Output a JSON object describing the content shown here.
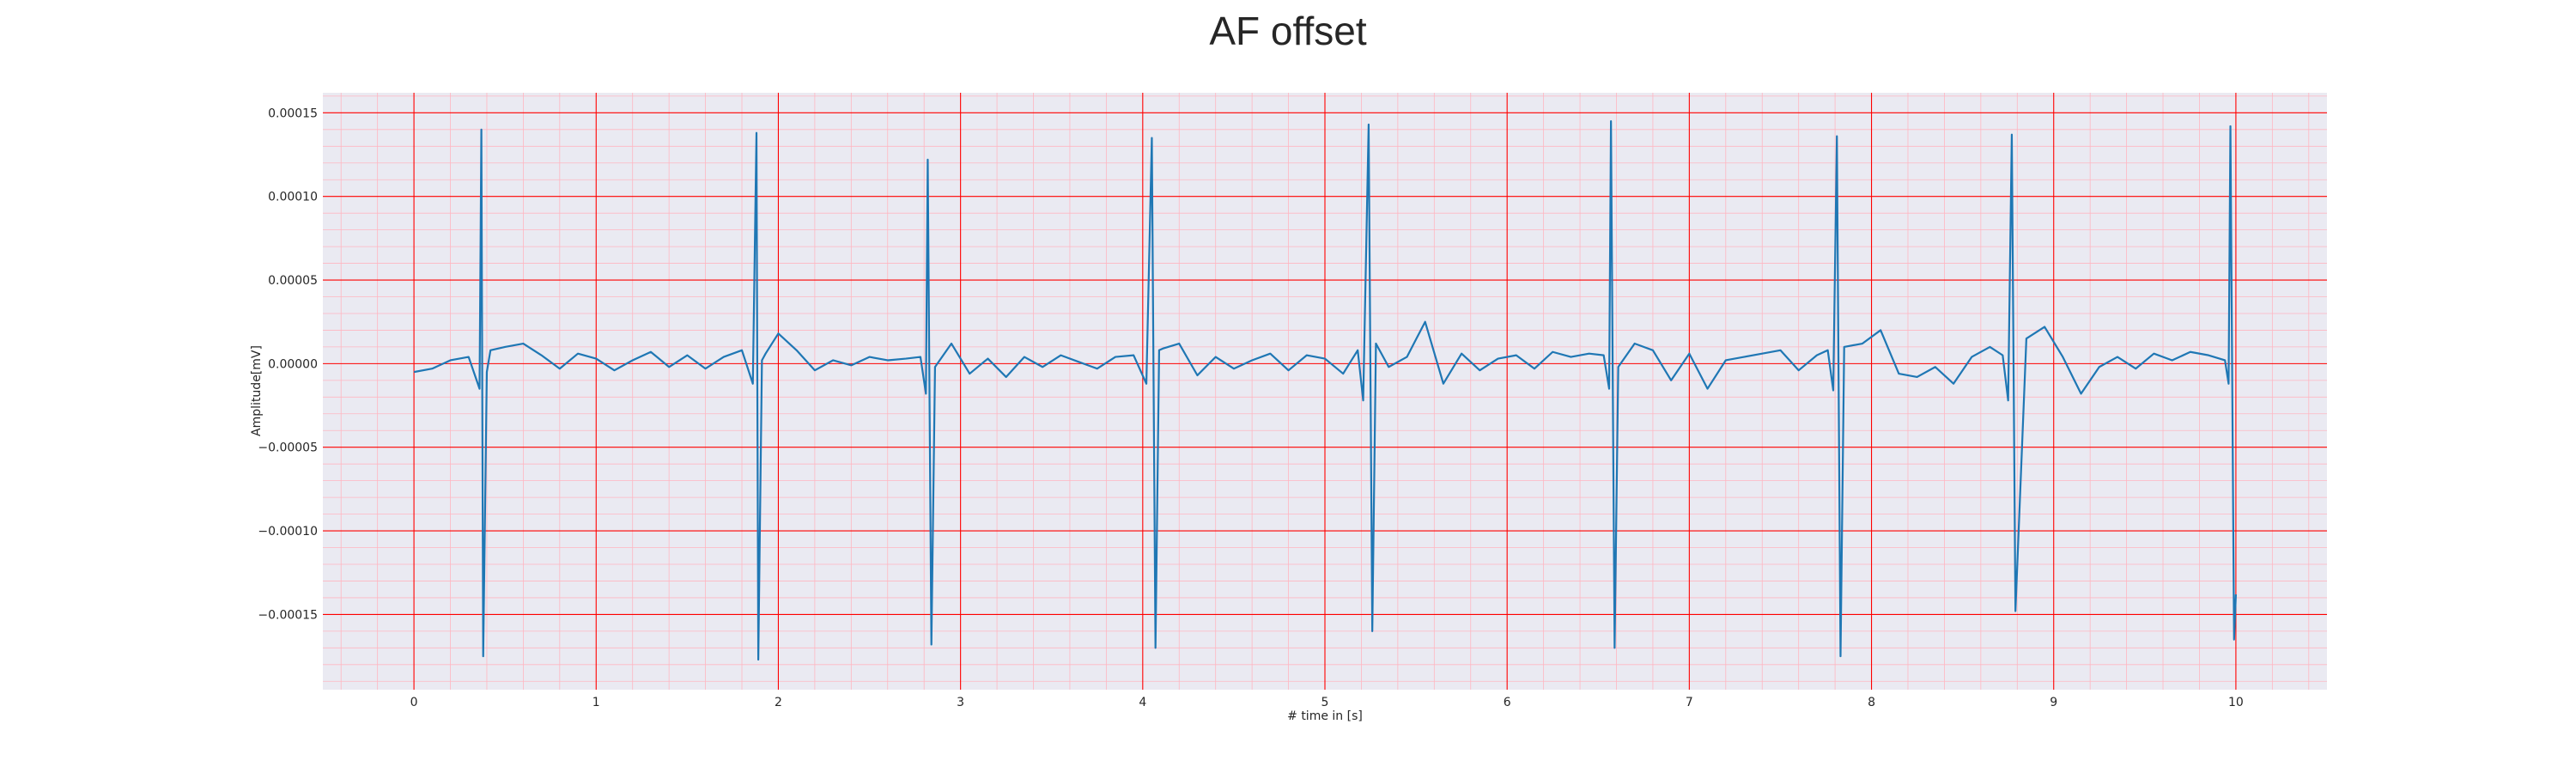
{
  "chart_data": {
    "type": "line",
    "title": "AF offset",
    "xlabel": "# time in [s]",
    "ylabel": "Amplitude[mV]",
    "xlim": [
      -0.5,
      10.5
    ],
    "ylim": [
      -0.000195,
      0.000162
    ],
    "x_ticks": [
      0,
      1,
      2,
      3,
      4,
      5,
      6,
      7,
      8,
      9,
      10
    ],
    "x_tick_labels": [
      "0",
      "1",
      "2",
      "3",
      "4",
      "5",
      "6",
      "7",
      "8",
      "9",
      "10"
    ],
    "y_ticks": [
      -0.00015,
      -0.0001,
      -5e-05,
      0,
      5e-05,
      0.0001,
      0.00015
    ],
    "y_tick_labels": [
      "−0.00015",
      "−0.00010",
      "−0.00005",
      "0.00000",
      "0.00005",
      "0.00010",
      "0.00015"
    ],
    "grid": true,
    "minor_grid": true,
    "legend": "none",
    "colors": {
      "line": "#1f77b4",
      "plot_background": "#eaeaf2",
      "major_grid": "#ff0000",
      "minor_grid": "#ffb6c1",
      "text": "#262626"
    },
    "series": [
      {
        "x": [
          0,
          0.1,
          0.2,
          0.3,
          0.36,
          0.37,
          0.38,
          0.4,
          0.42,
          0.5,
          0.6,
          0.7,
          0.8,
          0.9,
          1.0,
          1.1,
          1.2,
          1.3,
          1.4,
          1.5,
          1.6,
          1.7,
          1.8,
          1.86,
          1.88,
          1.89,
          1.91,
          1.93,
          2.0,
          2.1,
          2.2,
          2.3,
          2.4,
          2.5,
          2.6,
          2.7,
          2.78,
          2.81,
          2.82,
          2.84,
          2.86,
          2.95,
          3.05,
          3.15,
          3.25,
          3.35,
          3.45,
          3.55,
          3.65,
          3.75,
          3.85,
          3.95,
          4.02,
          4.05,
          4.07,
          4.09,
          4.11,
          4.2,
          4.3,
          4.4,
          4.5,
          4.6,
          4.7,
          4.8,
          4.9,
          5.0,
          5.1,
          5.18,
          5.21,
          5.24,
          5.26,
          5.28,
          5.35,
          5.45,
          5.55,
          5.65,
          5.75,
          5.85,
          5.95,
          6.05,
          6.15,
          6.25,
          6.35,
          6.45,
          6.53,
          6.56,
          6.57,
          6.59,
          6.61,
          6.7,
          6.8,
          6.9,
          7.0,
          7.1,
          7.2,
          7.3,
          7.4,
          7.5,
          7.6,
          7.7,
          7.76,
          7.79,
          7.81,
          7.83,
          7.85,
          7.95,
          8.05,
          8.15,
          8.25,
          8.35,
          8.45,
          8.55,
          8.65,
          8.72,
          8.75,
          8.77,
          8.79,
          8.85,
          8.95,
          9.05,
          9.15,
          9.25,
          9.35,
          9.45,
          9.55,
          9.65,
          9.75,
          9.85,
          9.94,
          9.96,
          9.97,
          9.99,
          10.0
        ],
        "values": [
          -5e-06,
          -3e-06,
          2e-06,
          4e-06,
          -1.5e-05,
          0.00014,
          -0.000175,
          -5e-06,
          8e-06,
          1e-05,
          1.2e-05,
          5e-06,
          -3e-06,
          6e-06,
          3e-06,
          -4e-06,
          2e-06,
          7e-06,
          -2e-06,
          5e-06,
          -3e-06,
          4e-06,
          8e-06,
          -1.2e-05,
          0.000138,
          -0.000177,
          2e-06,
          6e-06,
          1.8e-05,
          8e-06,
          -4e-06,
          2e-06,
          -1e-06,
          4e-06,
          2e-06,
          3e-06,
          4e-06,
          -1.8e-05,
          0.000122,
          -0.000168,
          -2e-06,
          1.2e-05,
          -6e-06,
          3e-06,
          -8e-06,
          4e-06,
          -2e-06,
          5e-06,
          1e-06,
          -3e-06,
          4e-06,
          5e-06,
          -1.2e-05,
          0.000135,
          -0.00017,
          8e-06,
          9e-06,
          1.2e-05,
          -7e-06,
          4e-06,
          -3e-06,
          2e-06,
          6e-06,
          -4e-06,
          5e-06,
          3e-06,
          -6e-06,
          8e-06,
          -2.2e-05,
          0.000143,
          -0.00016,
          1.2e-05,
          -2e-06,
          4e-06,
          2.5e-05,
          -1.2e-05,
          6e-06,
          -4e-06,
          3e-06,
          5e-06,
          -3e-06,
          7e-06,
          4e-06,
          6e-06,
          5e-06,
          -1.5e-05,
          0.000145,
          -0.00017,
          -2e-06,
          1.2e-05,
          8e-06,
          -1e-05,
          6e-06,
          -1.5e-05,
          2e-06,
          4e-06,
          6e-06,
          8e-06,
          -4e-06,
          5e-06,
          8e-06,
          -1.6e-05,
          0.000136,
          -0.000175,
          1e-05,
          1.2e-05,
          2e-05,
          -6e-06,
          -8e-06,
          -2e-06,
          -1.2e-05,
          4e-06,
          1e-05,
          5e-06,
          -2.2e-05,
          0.000137,
          -0.000148,
          1.5e-05,
          2.2e-05,
          4e-06,
          -1.8e-05,
          -2e-06,
          4e-06,
          -3e-06,
          6e-06,
          2e-06,
          7e-06,
          5e-06,
          2e-06,
          -1.2e-05,
          0.000142,
          -0.000165,
          -0.000138
        ]
      }
    ]
  }
}
